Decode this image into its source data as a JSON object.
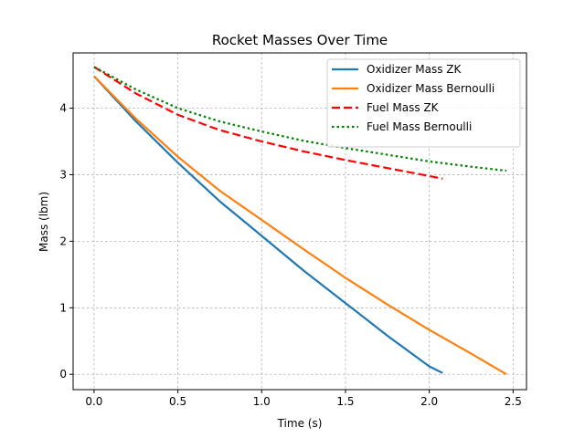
{
  "chart_data": {
    "type": "line",
    "title": "Rocket Masses Over Time",
    "xlabel": "Time (s)",
    "ylabel": "Mass (lbm)",
    "xlim": [
      -0.125,
      2.58
    ],
    "ylim": [
      -0.23,
      4.83
    ],
    "xticks": [
      0.0,
      0.5,
      1.0,
      1.5,
      2.0,
      2.5
    ],
    "xtick_labels": [
      "0.0",
      "0.5",
      "1.0",
      "1.5",
      "2.0",
      "2.5"
    ],
    "yticks": [
      0,
      1,
      2,
      3,
      4
    ],
    "ytick_labels": [
      "0",
      "1",
      "2",
      "3",
      "4"
    ],
    "grid": true,
    "legend_position": "top-right",
    "series": [
      {
        "name": "Oxidizer Mass ZK",
        "color": "#1f77b4",
        "style": "solid",
        "x": [
          0.0,
          0.25,
          0.5,
          0.75,
          1.0,
          1.25,
          1.5,
          1.75,
          2.0,
          2.08
        ],
        "y": [
          4.48,
          3.8,
          3.18,
          2.6,
          2.08,
          1.56,
          1.07,
          0.58,
          0.12,
          0.02
        ]
      },
      {
        "name": "Oxidizer Mass Bernoulli",
        "color": "#ff7f0e",
        "style": "solid",
        "x": [
          0.0,
          0.25,
          0.5,
          0.75,
          1.0,
          1.25,
          1.5,
          1.75,
          2.0,
          2.25,
          2.46
        ],
        "y": [
          4.48,
          3.84,
          3.27,
          2.76,
          2.32,
          1.88,
          1.45,
          1.05,
          0.67,
          0.31,
          0.0
        ]
      },
      {
        "name": "Fuel Mass ZK",
        "color": "#ff0000",
        "style": "dashed",
        "x": [
          0.0,
          0.25,
          0.5,
          0.75,
          1.0,
          1.25,
          1.5,
          1.75,
          2.0,
          2.08
        ],
        "y": [
          4.62,
          4.22,
          3.9,
          3.67,
          3.5,
          3.35,
          3.22,
          3.1,
          2.98,
          2.94
        ]
      },
      {
        "name": "Fuel Mass Bernoulli",
        "color": "#008000",
        "style": "dotted",
        "x": [
          0.0,
          0.25,
          0.5,
          0.75,
          1.0,
          1.25,
          1.5,
          1.75,
          2.0,
          2.25,
          2.46
        ],
        "y": [
          4.62,
          4.28,
          4.0,
          3.8,
          3.65,
          3.51,
          3.4,
          3.3,
          3.2,
          3.12,
          3.06
        ]
      }
    ]
  }
}
